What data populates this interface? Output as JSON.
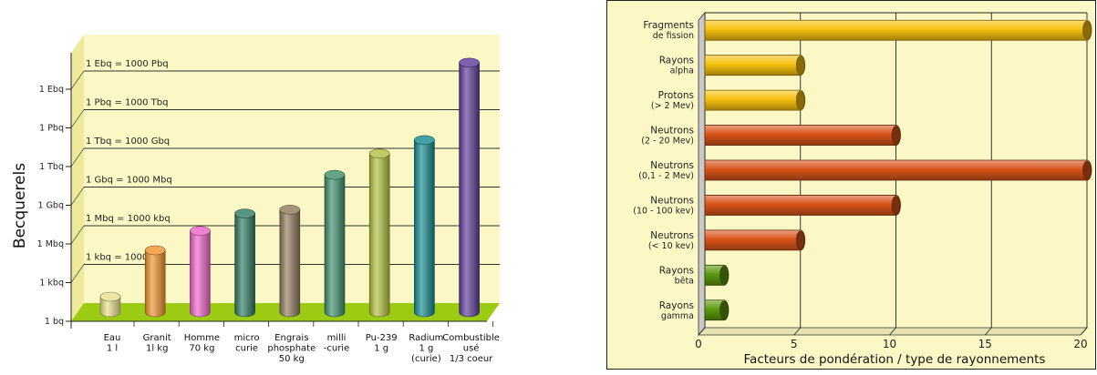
{
  "colors": {
    "panel_bg": "#fcf8c6",
    "floor": "#9ccb14",
    "side_wall": "#c9c9c9",
    "grid": "#222222",
    "orange_bar": "#d9541a",
    "yellow_bar": "#f7c20f",
    "green_bar": "#5e9a0e"
  },
  "chart_data": [
    {
      "type": "bar",
      "orientation": "vertical",
      "ylabel": "Becquerels",
      "ytick_labels": [
        "1 bq",
        "1 kbq",
        "1 Mbq",
        "1 Gbq",
        "1 Tbq",
        "1 Pbq",
        "1 Ebq"
      ],
      "y_scale": "log",
      "ylim_index": [
        0,
        7
      ],
      "grid_annotations": [
        "1 kbq = 1000 bq",
        "1 Mbq = 1000 kbq",
        "1 Gbq = 1000 Mbq",
        "1 Tbq = 1000 Gbq",
        "1 Pbq = 1000 Tbq",
        "1 Ebq = 1000 Pbq"
      ],
      "categories": [
        [
          "Eau",
          "1 l"
        ],
        [
          "Granit",
          "1l kg"
        ],
        [
          "Homme",
          "70 kg"
        ],
        [
          "micro",
          "curie"
        ],
        [
          "Engrais",
          "phosphate",
          "50 kg"
        ],
        [
          "milli",
          "-curie"
        ],
        [
          "Pu-239",
          "1 g"
        ],
        [
          "Radium",
          "1 g",
          "(curie)"
        ],
        [
          "Combustible",
          "usé",
          "1/3 coeur"
        ]
      ],
      "values_index": [
        0.4,
        1.6,
        2.1,
        2.55,
        2.65,
        3.55,
        4.1,
        4.45,
        6.45
      ],
      "bar_colors": [
        "#e9e08c",
        "#f0902c",
        "#ee63c7",
        "#2e7a62",
        "#8f7a5c",
        "#3d8e6c",
        "#b1be3c",
        "#12898e",
        "#5d3a9a"
      ],
      "legend": "none"
    },
    {
      "type": "bar",
      "orientation": "horizontal",
      "xlabel": "Facteurs de pondération / type de rayonnements",
      "xlim": [
        0,
        20
      ],
      "xticks": [
        0,
        5,
        10,
        15,
        20
      ],
      "categories": [
        [
          "Fragments",
          "de fission"
        ],
        [
          "Rayons",
          "alpha"
        ],
        [
          "Protons",
          "(> 2 Mev)"
        ],
        [
          "Neutrons",
          "(2 - 20 Mev)"
        ],
        [
          "Neutrons",
          "(0,1 - 2 Mev)"
        ],
        [
          "Neutrons",
          "(10 - 100 kev)"
        ],
        [
          "Neutrons",
          "(< 10 kev)"
        ],
        [
          "Rayons",
          "bêta"
        ],
        [
          "Rayons",
          "gamma"
        ]
      ],
      "values": [
        20,
        5,
        5,
        10,
        20,
        10,
        5,
        1,
        1
      ],
      "bar_color_keys": [
        "yellow_bar",
        "yellow_bar",
        "yellow_bar",
        "orange_bar",
        "orange_bar",
        "orange_bar",
        "orange_bar",
        "green_bar",
        "green_bar"
      ],
      "grid": true,
      "legend": "none"
    }
  ]
}
